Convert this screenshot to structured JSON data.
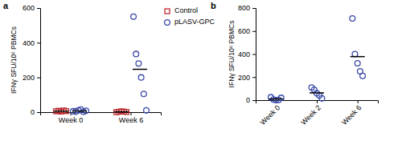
{
  "chart_data": [
    {
      "type": "scatter",
      "title": "a",
      "y_label": "IFNγ SFU/10⁶ PBMCs",
      "categories": [
        "Week 0",
        "Week 6"
      ],
      "ylim": [
        0,
        600
      ],
      "yticks": [
        0,
        200,
        400,
        600
      ],
      "legend": "upper right",
      "series": [
        {
          "name": "Control",
          "color": "#c0282d",
          "marker": "square",
          "values": [
            [
              5,
              8,
              3,
              10,
              6
            ],
            [
              0,
              2,
              5,
              3,
              1
            ]
          ],
          "means": [
            6,
            2
          ]
        },
        {
          "name": "pLASV-GPC",
          "color": "#3b4ba8",
          "marker": "circle",
          "values": [
            [
              5,
              3,
              10,
              15,
              2,
              8
            ],
            [
              550,
              335,
              280,
              200,
              105,
              10
            ]
          ],
          "means": [
            7,
            247
          ]
        }
      ]
    },
    {
      "type": "scatter",
      "title": "b",
      "y_label": "IFNγ SFU/10⁶ PBMCs",
      "categories": [
        "Week 0",
        "Week 2",
        "Week 6"
      ],
      "ylim": [
        0,
        800
      ],
      "yticks": [
        0,
        200,
        400,
        600,
        800
      ],
      "series": [
        {
          "color": "#3b4ba8",
          "marker": "circle",
          "values": [
            [
              25,
              5,
              0,
              2,
              20
            ],
            [
              110,
              90,
              60,
              40,
              15
            ],
            [
              710,
              400,
              320,
              250,
              210
            ]
          ],
          "means": [
            10,
            63,
            378
          ]
        }
      ]
    }
  ]
}
